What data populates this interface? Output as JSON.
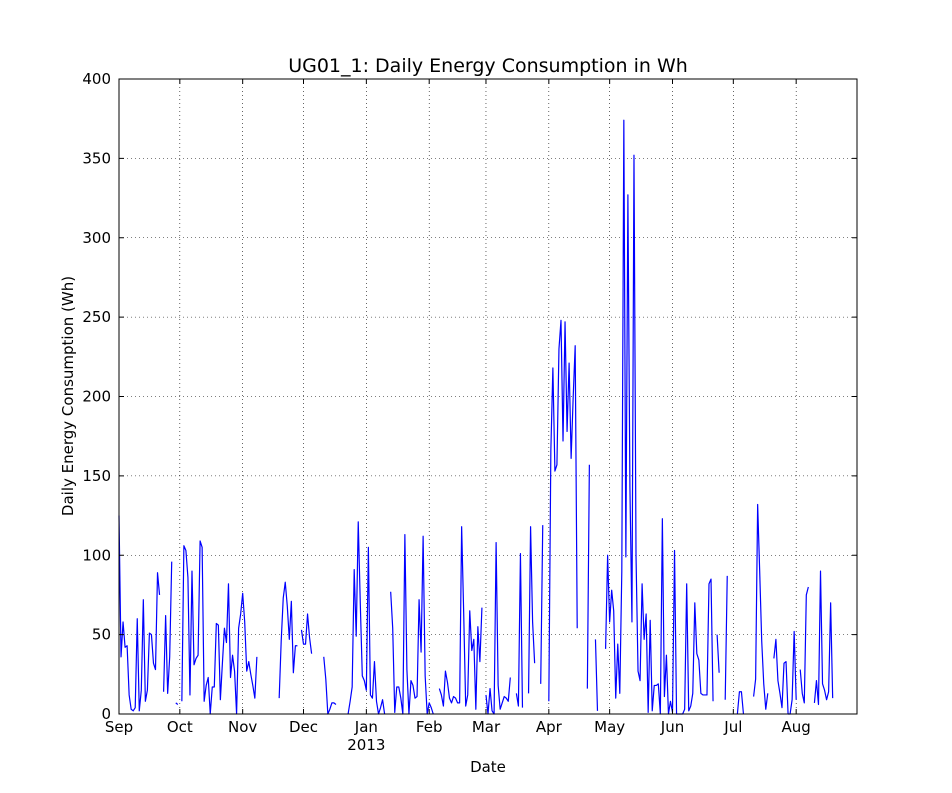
{
  "chart_data": {
    "type": "line",
    "title": "UG01_1: Daily Energy Consumption in Wh",
    "xlabel": "Date",
    "ylabel": "Daily Energy Consumption (Wh)",
    "ylim": [
      0,
      400
    ],
    "xlim": [
      "2012-09-01",
      "2013-08-31"
    ],
    "yticks": [
      0,
      50,
      100,
      150,
      200,
      250,
      300,
      350,
      400
    ],
    "xticks": [
      {
        "date": "2012-09-01",
        "label": "Sep"
      },
      {
        "date": "2012-10-01",
        "label": "Oct"
      },
      {
        "date": "2012-11-01",
        "label": "Nov"
      },
      {
        "date": "2012-12-01",
        "label": "Dec"
      },
      {
        "date": "2013-01-01",
        "label": "Jan",
        "sublabel": "2013"
      },
      {
        "date": "2013-02-01",
        "label": "Feb"
      },
      {
        "date": "2013-03-01",
        "label": "Mar"
      },
      {
        "date": "2013-04-01",
        "label": "Apr"
      },
      {
        "date": "2013-05-01",
        "label": "May"
      },
      {
        "date": "2013-06-01",
        "label": "Jun"
      },
      {
        "date": "2013-07-01",
        "label": "Jul"
      },
      {
        "date": "2013-08-01",
        "label": "Aug"
      }
    ],
    "grid": true,
    "color": "#0000ff",
    "series": [
      {
        "start": "2012-09-01",
        "values": [
          125,
          36,
          58,
          42,
          43,
          12,
          3,
          2,
          4,
          60,
          2,
          15,
          72,
          8,
          15,
          51,
          50,
          32,
          28,
          89,
          75,
          null,
          14,
          62,
          13,
          36,
          96,
          null,
          7,
          6,
          null,
          8,
          106,
          103,
          86,
          12,
          90,
          31,
          35,
          37,
          109,
          105,
          8,
          18,
          23,
          0,
          17,
          17,
          57,
          56,
          9,
          32,
          54,
          45,
          82,
          23,
          37,
          27,
          0,
          54,
          63,
          76,
          58,
          27,
          33,
          25,
          18,
          10,
          36,
          null,
          null,
          null,
          null,
          null,
          null,
          null,
          null,
          null,
          null,
          10,
          46,
          73,
          83,
          68,
          47,
          71,
          26,
          43,
          43,
          null,
          53,
          44,
          44,
          63,
          48,
          38,
          null,
          null,
          null,
          null,
          null,
          36,
          22,
          0,
          3,
          7,
          7,
          6,
          null,
          null,
          null,
          null,
          null,
          0,
          8,
          17,
          91,
          49,
          121,
          70,
          24,
          21,
          15,
          105,
          12,
          10,
          33,
          8,
          0,
          4,
          9,
          0,
          null,
          null,
          77,
          54,
          1,
          17,
          17,
          10,
          0,
          113,
          28,
          0,
          21,
          18,
          10,
          11,
          72,
          39,
          112,
          24,
          0,
          7,
          4,
          0,
          null,
          null,
          16,
          12,
          5,
          27,
          20,
          10,
          7,
          11,
          10,
          7,
          7,
          118,
          64,
          5,
          12,
          65,
          40,
          47,
          3,
          55,
          33,
          67,
          null,
          12,
          0,
          16,
          2,
          0,
          108,
          18,
          3,
          7,
          11,
          10,
          8,
          23,
          null,
          null,
          13,
          5,
          101,
          4,
          null,
          null,
          13,
          118,
          58,
          32,
          null,
          null,
          19,
          119,
          null,
          null,
          8,
          166,
          218,
          153,
          157,
          230,
          248,
          172,
          247,
          178,
          221,
          161,
          199,
          232,
          54,
          null,
          null,
          null,
          null,
          16,
          157,
          null,
          null,
          47,
          2,
          null,
          null,
          null,
          41,
          100,
          58,
          78,
          65,
          10,
          44,
          13,
          90,
          374,
          99,
          327,
          143,
          58,
          352,
          100,
          27,
          21,
          82,
          47,
          63,
          1,
          59,
          2,
          18,
          18,
          19,
          0,
          123,
          11,
          37,
          0,
          8,
          1,
          103,
          0,
          0,
          0,
          0,
          3,
          82,
          2,
          5,
          13,
          70,
          38,
          34,
          13,
          12,
          12,
          12,
          82,
          85,
          8,
          null,
          50,
          26,
          null,
          null,
          9,
          87,
          null,
          null,
          null,
          null,
          0,
          14,
          14,
          0,
          null,
          null,
          33,
          null,
          11,
          22,
          132,
          90,
          46,
          19,
          3,
          13,
          null,
          null,
          35,
          47,
          21,
          13,
          4,
          32,
          33,
          0,
          0,
          9,
          52,
          9,
          null,
          28,
          13,
          7,
          75,
          80,
          null,
          null,
          7,
          21,
          6,
          90,
          19,
          15,
          9,
          14,
          70,
          10
        ]
      }
    ]
  }
}
